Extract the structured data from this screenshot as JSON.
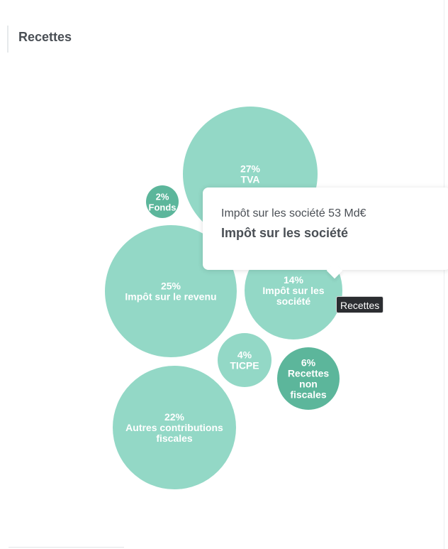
{
  "header": {
    "title": "Recettes"
  },
  "chart_data": {
    "type": "bubble",
    "title": "Recettes",
    "series": [
      {
        "name": "Recettes",
        "points": [
          {
            "percent": "27%",
            "label": [
              "TVA"
            ],
            "color": "#93d8c6"
          },
          {
            "percent": "2%",
            "label": [
              "Fonds"
            ],
            "color": "#5cb69b"
          },
          {
            "percent": "25%",
            "label": [
              "Impôt sur le revenu"
            ],
            "color": "#93d8c6"
          },
          {
            "percent": "14%",
            "label": [
              "Impôt sur les",
              "société"
            ],
            "color": "#93d8c6"
          },
          {
            "percent": "4%",
            "label": [
              "TICPE"
            ],
            "color": "#93d8c6"
          },
          {
            "percent": "6%",
            "label": [
              "Recettes",
              "non",
              "fiscales"
            ],
            "color": "#5cb69b"
          },
          {
            "percent": "22%",
            "label": [
              "Autres contributions",
              "fiscales"
            ],
            "color": "#93d8c6"
          }
        ]
      }
    ]
  },
  "tooltip": {
    "line1": "Impôt sur les société 53 Md€",
    "line2": "Impôt sur les société",
    "series_tag": "Recettes"
  }
}
